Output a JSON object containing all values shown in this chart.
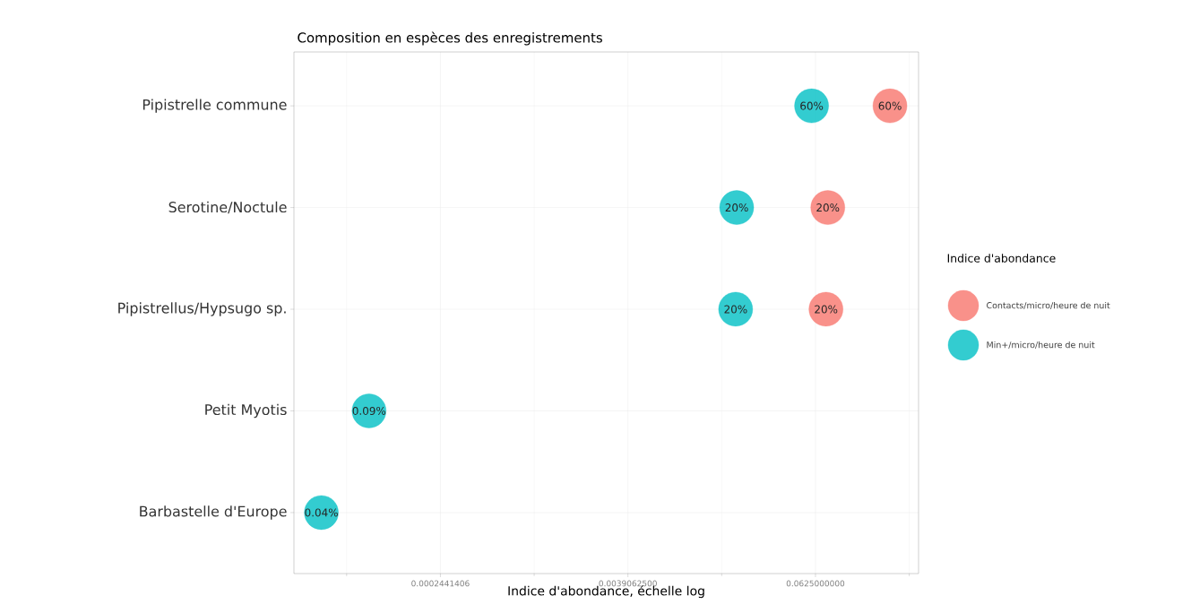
{
  "chart_data": {
    "type": "scatter",
    "title": "Composition en espèces des enregistrements",
    "xlabel": "Indice d'abondance, échelle log",
    "legend_title": "Indice d'abondance",
    "categories": [
      "Pipistrelle commune",
      "Serotine/Noctule",
      "Pipistrellus/Hypsugo sp.",
      "Petit Myotis",
      "Barbastelle d'Europe"
    ],
    "orientation": "horizontal",
    "log": "x",
    "grid": true,
    "legend": "right",
    "marker": "circle",
    "xlim": [
      2.8e-05,
      0.287
    ],
    "xticks": [
      {
        "value": 0.0002441406,
        "label": "0.0002441406"
      },
      {
        "value": 0.00390625,
        "label": "0.0039062500"
      },
      {
        "value": 0.0625,
        "label": "0.0625000000"
      }
    ],
    "series": [
      {
        "name": "Contacts/micro/heure de nuit",
        "color": "#f8766d",
        "values": [
          0.188,
          0.075,
          0.073,
          null,
          null
        ]
      },
      {
        "name": "Min+/micro/heure de nuit",
        "color": "#00bfc4",
        "values": [
          0.059,
          0.0195,
          0.0192,
          8.5e-05,
          4.2e-05
        ]
      }
    ],
    "annotations": [
      {
        "text": "60%",
        "x": 0.188,
        "y": "Pipistrelle commune"
      },
      {
        "text": "60%",
        "x": 0.059,
        "y": "Pipistrelle commune"
      },
      {
        "text": "20%",
        "x": 0.075,
        "y": "Serotine/Noctule"
      },
      {
        "text": "20%",
        "x": 0.0195,
        "y": "Serotine/Noctule"
      },
      {
        "text": "20%",
        "x": 0.073,
        "y": "Pipistrellus/Hypsugo sp."
      },
      {
        "text": "20%",
        "x": 0.0192,
        "y": "Pipistrellus/Hypsugo sp."
      },
      {
        "text": "0.09%",
        "x": 8.5e-05,
        "y": "Petit Myotis"
      },
      {
        "text": "0.04%",
        "x": 4.2e-05,
        "y": "Barbastelle d'Europe"
      }
    ]
  }
}
